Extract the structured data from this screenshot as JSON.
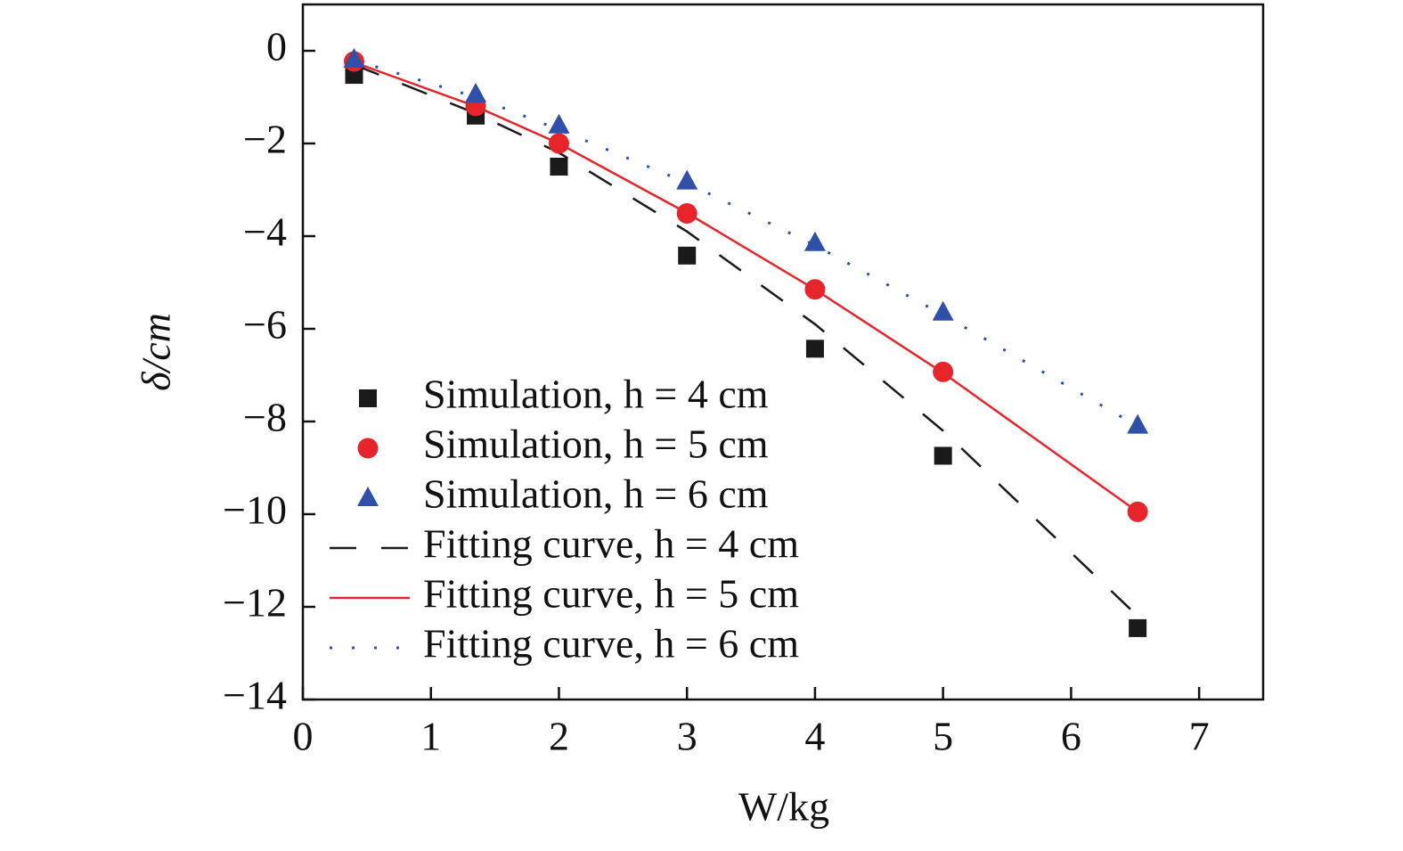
{
  "chart_data": {
    "type": "scatter",
    "x_label": "W/kg",
    "y_label": "δ/cm",
    "x": [
      0.4,
      1.35,
      2,
      3,
      4,
      5,
      6.52
    ],
    "series": [
      {
        "name": "Simulation, h = 4 cm",
        "color": "#1a1a1a",
        "marker": "square",
        "values": [
          -0.52,
          -1.4,
          -2.5,
          -4.42,
          -6.43,
          -8.74,
          -12.46
        ]
      },
      {
        "name": "Simulation, h = 5 cm",
        "color": "#e8242b",
        "marker": "circle",
        "values": [
          -0.23,
          -1.19,
          -2.0,
          -3.51,
          -5.15,
          -6.93,
          -9.95
        ]
      },
      {
        "name": "Simulation, h = 6 cm",
        "color": "#2f4fa8",
        "marker": "triangle",
        "values": [
          -0.19,
          -0.94,
          -1.61,
          -2.82,
          -4.15,
          -5.65,
          -8.09
        ]
      },
      {
        "name": "Fitting curve, h = 4 cm",
        "color": "#1a1a1a",
        "line": "dashed",
        "values": [
          -0.3,
          -1.35,
          -2.2,
          -3.9,
          -5.9,
          -8.2,
          -12.2
        ]
      },
      {
        "name": "Fitting curve, h = 5 cm",
        "color": "#e8242b",
        "line": "solid",
        "values": [
          -0.25,
          -1.2,
          -2.0,
          -3.5,
          -5.15,
          -6.95,
          -9.95
        ]
      },
      {
        "name": "Fitting curve, h = 6 cm",
        "color": "#2f4fa8",
        "line": "dotted",
        "values": [
          -0.2,
          -1.0,
          -1.7,
          -2.85,
          -4.2,
          -5.7,
          -8.1
        ]
      }
    ],
    "xlim": [
      0,
      7.5
    ],
    "ylim": [
      -14,
      1
    ],
    "xticks": [
      0,
      1,
      2,
      3,
      4,
      5,
      6,
      7
    ],
    "yticks": [
      {
        "value": -14,
        "label": "−14"
      },
      {
        "value": -12,
        "label": "−12"
      },
      {
        "value": -10,
        "label": "−10"
      },
      {
        "value": -8,
        "label": "−8"
      },
      {
        "value": -6,
        "label": "−6"
      },
      {
        "value": -4,
        "label": "−4"
      },
      {
        "value": -2,
        "label": "−2"
      },
      0
    ],
    "legend": "lower-left"
  }
}
